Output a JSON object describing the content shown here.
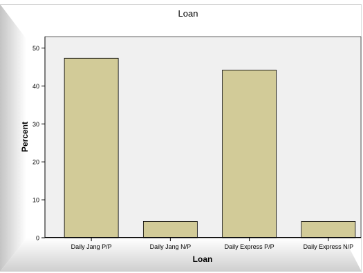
{
  "chart_data": {
    "type": "bar",
    "title": "Loan",
    "xlabel": "Loan",
    "ylabel": "Percent",
    "categories": [
      "Daily Jang P/P",
      "Daily Jang N/P",
      "Daily Express P/P",
      "Daily Express N/P"
    ],
    "values": [
      47.3,
      4.3,
      44.2,
      4.3
    ],
    "ylim": [
      0,
      53
    ],
    "yticks": [
      0,
      10,
      20,
      30,
      40,
      50
    ],
    "grid": false,
    "legend": "none",
    "colors": {
      "bar_fill": "#d2cb98",
      "bar_stroke": "#000000",
      "plot_background": "#f0f0f0",
      "frame_background": "#ffffff",
      "frame_shadow": "#c8c8c8"
    }
  }
}
